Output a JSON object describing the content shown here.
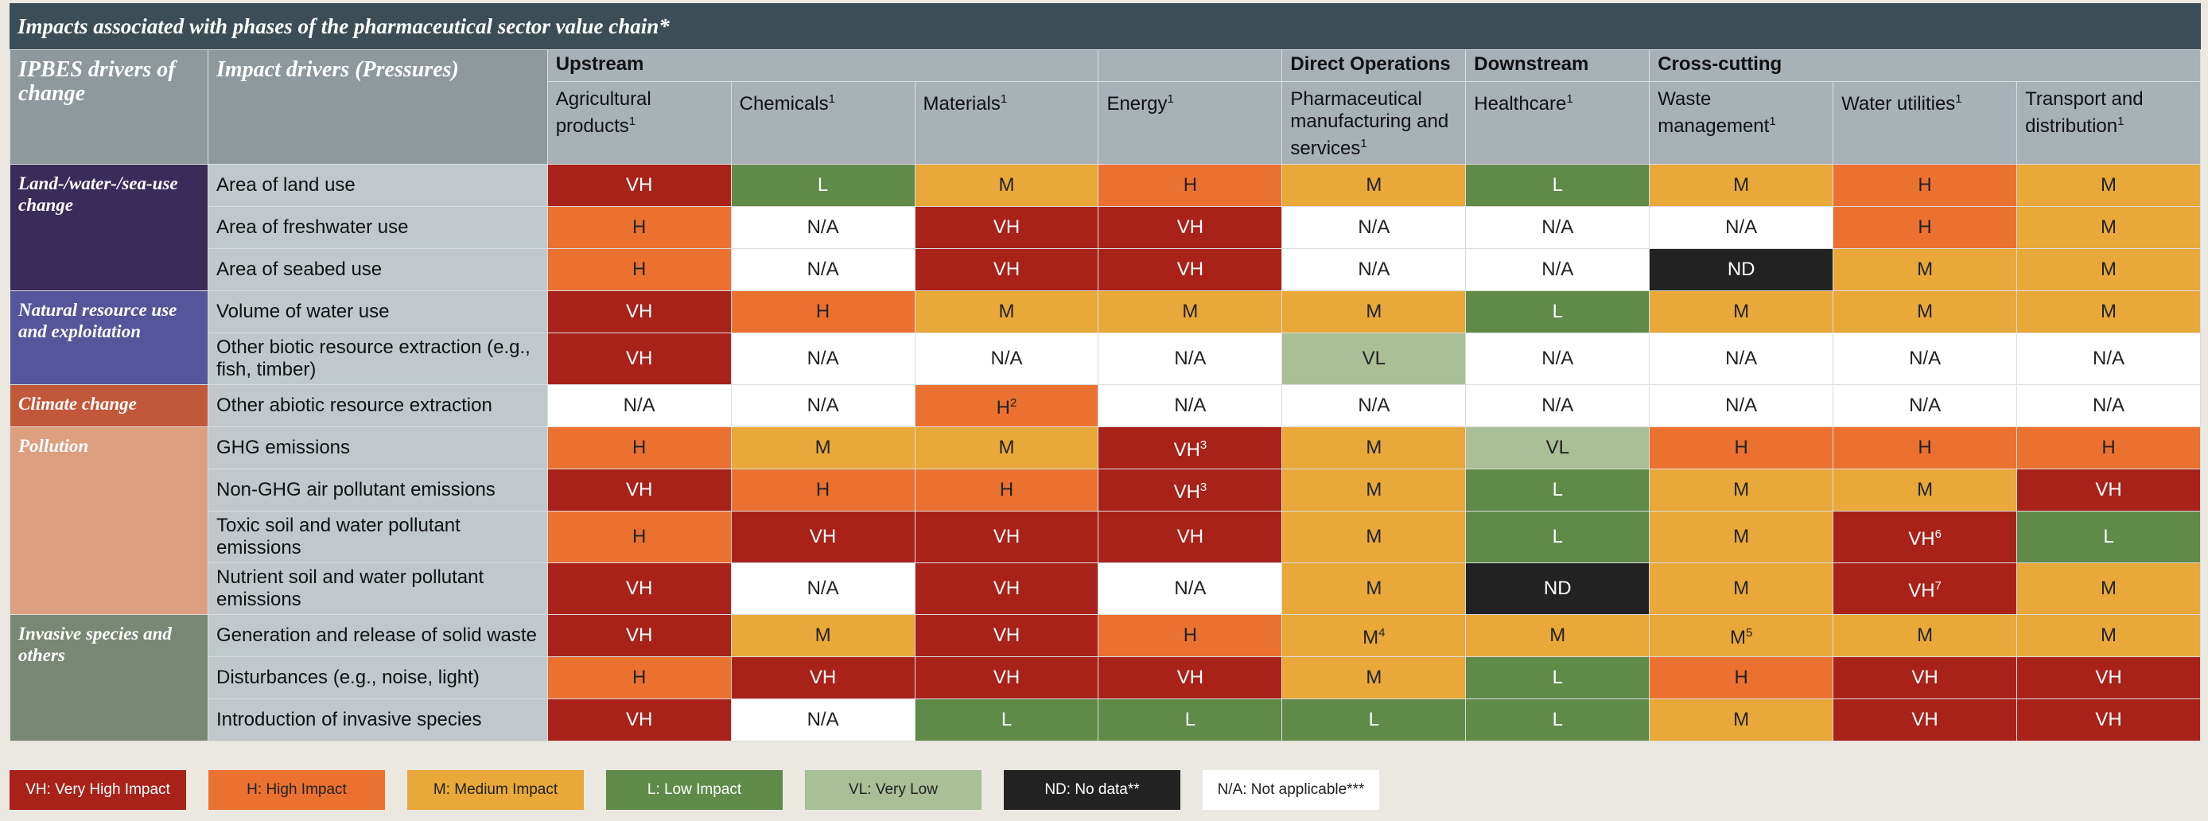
{
  "title": "Impacts associated with phases of the pharmaceutical sector value chain*",
  "header": {
    "drivers": "IPBES drivers of change",
    "pressures": "Impact drivers (Pressures)",
    "groups": [
      {
        "label": "Upstream",
        "columns": [
          {
            "text": "Agricultural products",
            "sup": "1"
          },
          {
            "text": "Chemicals",
            "sup": "1"
          },
          {
            "text": "Materials",
            "sup": "1"
          }
        ]
      },
      {
        "label": null,
        "columns": [
          {
            "text": "Energy",
            "sup": "1"
          }
        ]
      },
      {
        "label": "Direct Operations",
        "columns": [
          {
            "text": "Pharmaceutical manufacturing and services",
            "sup": "1"
          }
        ]
      },
      {
        "label": "Downstream",
        "columns": [
          {
            "text": "Healthcare",
            "sup": "1"
          }
        ]
      },
      {
        "label": "Cross-cutting",
        "columns": [
          {
            "text": "Waste management",
            "sup": "1"
          },
          {
            "text": "Water utilities",
            "sup": "1"
          },
          {
            "text": "Transport and distribution",
            "sup": "1"
          }
        ]
      }
    ]
  },
  "driver_groups": [
    {
      "label": "Land-/water-/sea-use change",
      "color": "#3a2c5a",
      "rows": [
        {
          "pressure": "Area of land use",
          "cells": [
            "VH",
            "L",
            "M",
            "H",
            "M",
            "L",
            "M",
            "H",
            "M"
          ]
        },
        {
          "pressure": "Area of freshwater use",
          "cells": [
            "H",
            "N/A",
            "VH",
            "VH",
            "N/A",
            "N/A",
            "N/A",
            "H",
            "M"
          ]
        },
        {
          "pressure": "Area of seabed use",
          "cells": [
            "H",
            "N/A",
            "VH",
            "VH",
            "N/A",
            "N/A",
            "ND",
            "M",
            "M"
          ]
        }
      ]
    },
    {
      "label": "Natural resource use and exploitation",
      "color": "#56549a",
      "rows": [
        {
          "pressure": "Volume of water use",
          "cells": [
            "VH",
            "H",
            "M",
            "M",
            "M",
            "L",
            "M",
            "M",
            "M"
          ]
        },
        {
          "pressure": "Other biotic resource extraction (e.g., fish, timber)",
          "cells": [
            "VH",
            "N/A",
            "N/A",
            "N/A",
            "VL",
            "N/A",
            "N/A",
            "N/A",
            "N/A"
          ]
        }
      ]
    },
    {
      "label": "Climate change",
      "color": "#c2583a",
      "rows": [
        {
          "pressure": "Other abiotic resource extraction",
          "cells": [
            "N/A",
            "N/A",
            {
              "text": "H",
              "sup": "2"
            },
            "N/A",
            "N/A",
            "N/A",
            "N/A",
            "N/A",
            "N/A"
          ]
        }
      ]
    },
    {
      "label": "Pollution",
      "color": "#dc9f80",
      "rows": [
        {
          "pressure": "GHG emissions",
          "cells": [
            "H",
            "M",
            "M",
            {
              "text": "VH",
              "sup": "3"
            },
            "M",
            "VL",
            "H",
            "H",
            "H"
          ]
        },
        {
          "pressure": "Non-GHG air pollutant emissions",
          "cells": [
            "VH",
            "H",
            "H",
            {
              "text": "VH",
              "sup": "3"
            },
            "M",
            "L",
            "M",
            "M",
            "VH"
          ]
        },
        {
          "pressure": "Toxic soil and water pollutant emissions",
          "cells": [
            "H",
            "VH",
            "VH",
            "VH",
            "M",
            "L",
            "M",
            {
              "text": "VH",
              "sup": "6"
            },
            "L"
          ]
        },
        {
          "pressure": "Nutrient soil and water pollutant emissions",
          "cells": [
            "VH",
            "N/A",
            "VH",
            "N/A",
            "M",
            "ND",
            "M",
            {
              "text": "VH",
              "sup": "7"
            },
            "M"
          ]
        }
      ]
    },
    {
      "label": "Invasive species and others",
      "color": "#7a8873",
      "rows": [
        {
          "pressure": "Generation and release of solid waste",
          "cells": [
            "VH",
            "M",
            "VH",
            "H",
            {
              "text": "M",
              "sup": "4"
            },
            "M",
            {
              "text": "M",
              "sup": "5"
            },
            "M",
            "M"
          ]
        },
        {
          "pressure": "Disturbances (e.g., noise, light)",
          "cells": [
            "H",
            "VH",
            "VH",
            "VH",
            "M",
            "L",
            "H",
            "VH",
            "VH"
          ]
        },
        {
          "pressure": "Introduction of invasive species",
          "cells": [
            "VH",
            "N/A",
            "L",
            "L",
            "L",
            "L",
            "M",
            "VH",
            "VH"
          ]
        }
      ]
    }
  ],
  "legend": [
    {
      "label": "VH: Very High Impact",
      "color": "#a8221a"
    },
    {
      "label": "H: High Impact",
      "color": "#eb7131"
    },
    {
      "label": "M: Medium Impact",
      "color": "#e9a83a"
    },
    {
      "label": "L: Low Impact",
      "color": "#5f8a48"
    },
    {
      "label": "VL: Very Low",
      "color": "#a9bf98"
    },
    {
      "label": "ND: No data**",
      "color": "#222222"
    },
    {
      "label": "N/A: Not applicable***",
      "color": "#ffffff"
    }
  ]
}
